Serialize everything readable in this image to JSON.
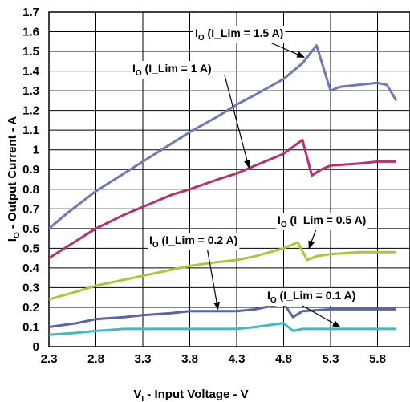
{
  "chart_data": {
    "type": "line",
    "xlabel_main": "V",
    "xlabel_sub": "I",
    "xlabel_rest": " - Input Voltage - V",
    "ylabel_main": "I",
    "ylabel_sub": "O",
    "ylabel_rest": " - Output Current - A",
    "xlim": [
      2.3,
      6.1
    ],
    "ylim": [
      0,
      1.7
    ],
    "x_ticks": [
      "2.3",
      "2.8",
      "3.3",
      "3.8",
      "4.3",
      "4.8",
      "5.3",
      "5.8"
    ],
    "x_tick_values": [
      2.3,
      2.8,
      3.3,
      3.8,
      4.3,
      4.8,
      5.3,
      5.8
    ],
    "y_ticks": [
      "0",
      "0.1",
      "0.2",
      "0.3",
      "0.4",
      "0.5",
      "0.6",
      "0.7",
      "0.8",
      "0.9",
      "1",
      "1.1",
      "1.2",
      "1.3",
      "1.4",
      "1.5",
      "1.6",
      "1.7"
    ],
    "y_tick_values": [
      0,
      0.1,
      0.2,
      0.3,
      0.4,
      0.5,
      0.6,
      0.7,
      0.8,
      0.9,
      1.0,
      1.1,
      1.2,
      1.3,
      1.4,
      1.5,
      1.6,
      1.7
    ],
    "grid": true,
    "series": [
      {
        "name": "I_Lim = 1.5 A",
        "color": "#6e79b8",
        "x": [
          2.3,
          2.5,
          2.8,
          3.1,
          3.3,
          3.6,
          3.8,
          4.1,
          4.3,
          4.5,
          4.8,
          5.0,
          5.15,
          5.3,
          5.4,
          5.6,
          5.8,
          5.9,
          6.0
        ],
        "y": [
          0.6,
          0.68,
          0.79,
          0.88,
          0.94,
          1.03,
          1.09,
          1.17,
          1.23,
          1.28,
          1.36,
          1.44,
          1.53,
          1.3,
          1.32,
          1.33,
          1.34,
          1.33,
          1.25
        ]
      },
      {
        "name": "I_Lim = 1 A",
        "color": "#b8306e",
        "x": [
          2.3,
          2.6,
          2.8,
          3.1,
          3.3,
          3.6,
          3.8,
          4.1,
          4.3,
          4.5,
          4.8,
          5.0,
          5.1,
          5.2,
          5.3,
          5.6,
          5.8,
          6.0
        ],
        "y": [
          0.45,
          0.54,
          0.6,
          0.67,
          0.71,
          0.77,
          0.8,
          0.85,
          0.88,
          0.92,
          0.98,
          1.05,
          0.87,
          0.9,
          0.92,
          0.93,
          0.94,
          0.94
        ]
      },
      {
        "name": "I_Lim = 0.5 A",
        "color": "#a8c838",
        "x": [
          2.3,
          2.6,
          2.8,
          3.1,
          3.3,
          3.6,
          3.8,
          4.1,
          4.3,
          4.5,
          4.8,
          4.95,
          5.05,
          5.15,
          5.3,
          5.6,
          5.8,
          6.0
        ],
        "y": [
          0.24,
          0.28,
          0.31,
          0.34,
          0.36,
          0.39,
          0.41,
          0.43,
          0.44,
          0.46,
          0.5,
          0.53,
          0.44,
          0.46,
          0.47,
          0.48,
          0.48,
          0.48
        ]
      },
      {
        "name": "I_Lim = 0.2 A",
        "color": "#5a64aa",
        "x": [
          2.3,
          2.6,
          2.8,
          3.1,
          3.3,
          3.6,
          3.8,
          4.1,
          4.3,
          4.5,
          4.8,
          4.9,
          5.0,
          5.3,
          5.6,
          5.8,
          6.0
        ],
        "y": [
          0.1,
          0.12,
          0.14,
          0.15,
          0.16,
          0.17,
          0.18,
          0.18,
          0.18,
          0.19,
          0.22,
          0.15,
          0.18,
          0.19,
          0.19,
          0.19,
          0.19
        ]
      },
      {
        "name": "I_Lim = 0.1 A",
        "color": "#3dbcbc",
        "x": [
          2.3,
          2.6,
          2.8,
          3.1,
          3.3,
          3.6,
          3.8,
          4.1,
          4.3,
          4.5,
          4.8,
          4.9,
          5.0,
          5.3,
          5.6,
          5.8,
          6.0
        ],
        "y": [
          0.06,
          0.07,
          0.08,
          0.09,
          0.09,
          0.09,
          0.09,
          0.09,
          0.09,
          0.1,
          0.12,
          0.08,
          0.09,
          0.09,
          0.09,
          0.09,
          0.09
        ]
      }
    ],
    "annotations": [
      {
        "main": "I",
        "sub": "O",
        "rest": " (I_Lim = 1.5 A)",
        "tip_x": 5.02,
        "tip_y": 1.47
      },
      {
        "main": "I",
        "sub": "O",
        "rest": " (I_Lim = 1 A)",
        "tip_x": 4.43,
        "tip_y": 0.91
      },
      {
        "main": "I",
        "sub": "O",
        "rest": " (I_Lim = 0.5 A)",
        "tip_x": 5.07,
        "tip_y": 0.5
      },
      {
        "main": "I",
        "sub": "O",
        "rest": " (I_Lim = 0.2 A)",
        "tip_x": 4.1,
        "tip_y": 0.19
      },
      {
        "main": "I",
        "sub": "O",
        "rest": " (I_Lim = 0.1 A)",
        "tip_x": 5.4,
        "tip_y": 0.1
      }
    ]
  }
}
